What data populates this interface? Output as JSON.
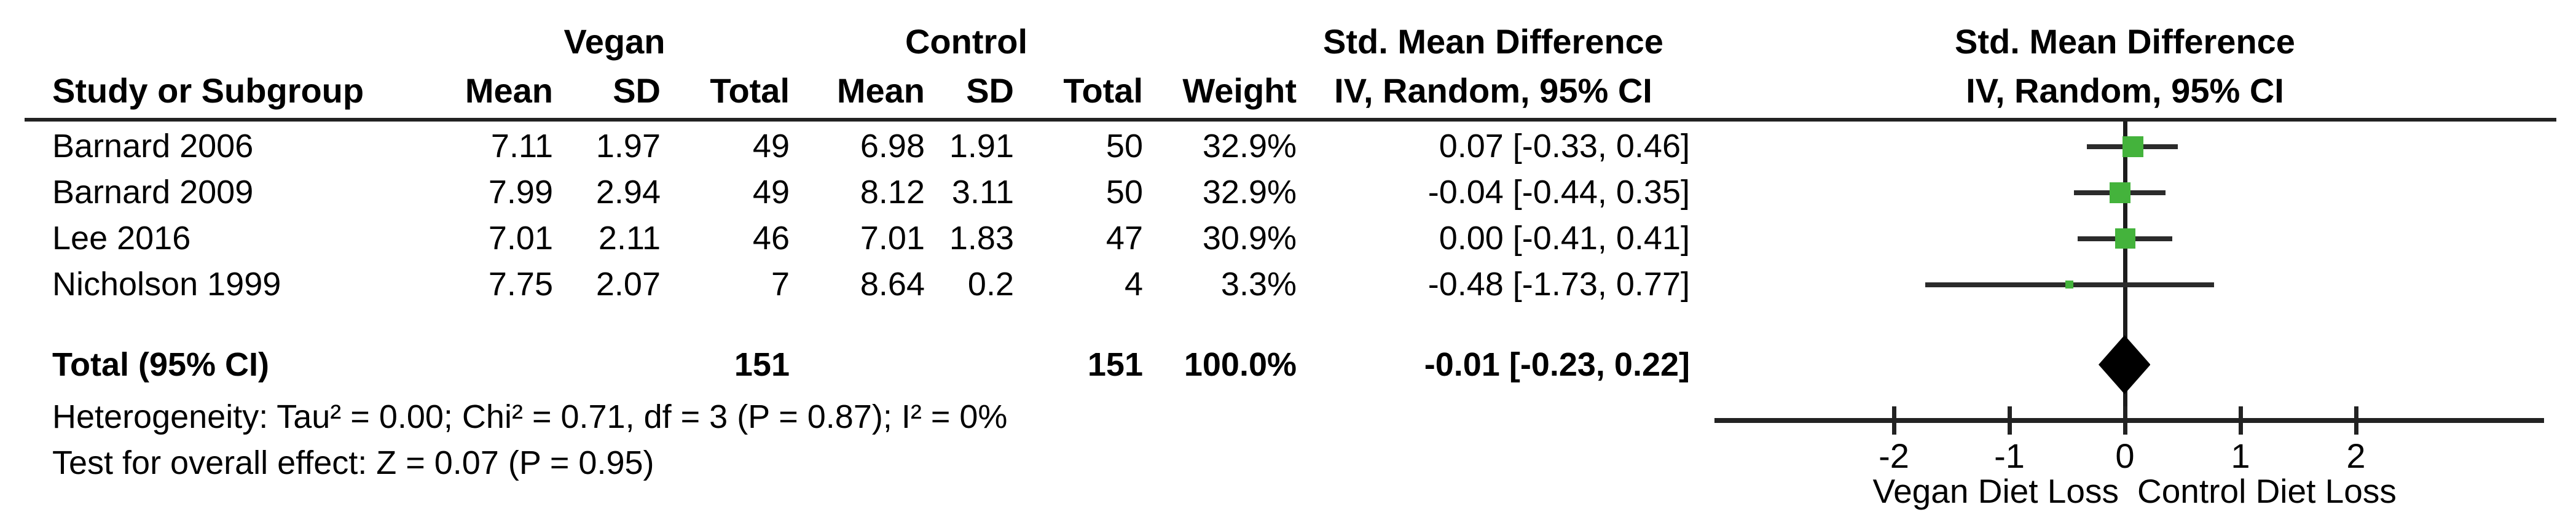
{
  "table": {
    "group_headers": {
      "vegan": "Vegan",
      "control": "Control",
      "smd_left": "Std. Mean Difference",
      "smd_right": "Std. Mean Difference"
    },
    "col_headers": {
      "study": "Study or Subgroup",
      "vegan_mean": "Mean",
      "vegan_sd": "SD",
      "vegan_total": "Total",
      "control_mean": "Mean",
      "control_sd": "SD",
      "control_total": "Total",
      "weight": "Weight",
      "ci_left": "IV, Random, 95% CI",
      "ci_right": "IV, Random, 95% CI"
    },
    "rows": [
      {
        "study": "Barnard 2006",
        "v_mean": "7.11",
        "v_sd": "1.97",
        "v_total": "49",
        "c_mean": "6.98",
        "c_sd": "1.91",
        "c_total": "50",
        "weight": "32.9%",
        "ci": "0.07 [-0.33, 0.46]"
      },
      {
        "study": "Barnard 2009",
        "v_mean": "7.99",
        "v_sd": "2.94",
        "v_total": "49",
        "c_mean": "8.12",
        "c_sd": "3.11",
        "c_total": "50",
        "weight": "32.9%",
        "ci": "-0.04 [-0.44, 0.35]"
      },
      {
        "study": "Lee 2016",
        "v_mean": "7.01",
        "v_sd": "2.11",
        "v_total": "46",
        "c_mean": "7.01",
        "c_sd": "1.83",
        "c_total": "47",
        "weight": "30.9%",
        "ci": "0.00 [-0.41, 0.41]"
      },
      {
        "study": "Nicholson 1999",
        "v_mean": "7.75",
        "v_sd": "2.07",
        "v_total": "7",
        "c_mean": "8.64",
        "c_sd": "0.2",
        "c_total": "4",
        "weight": "3.3%",
        "ci": "-0.48 [-1.73, 0.77]"
      }
    ],
    "total_row": {
      "label": "Total (95% CI)",
      "v_total": "151",
      "c_total": "151",
      "weight": "100.0%",
      "ci": "-0.01 [-0.23, 0.22]"
    },
    "heterogeneity": "Heterogeneity: Tau² = 0.00; Chi² = 0.71, df = 3 (P = 0.87); I² = 0%",
    "overall_effect": "Test for overall effect: Z = 0.07 (P = 0.95)"
  },
  "chart_data": {
    "type": "forest",
    "title": "Std. Mean Difference",
    "method_label": "IV, Random, 95% CI",
    "xlabel_left": "Vegan Diet Loss",
    "xlabel_right": "Control Diet Loss",
    "ticks": [
      -2,
      -1,
      0,
      1,
      2
    ],
    "axis_range": [
      -3.55,
      3.63
    ],
    "studies": [
      {
        "name": "Barnard 2006",
        "est": 0.07,
        "lo": -0.33,
        "hi": 0.46,
        "weight": 32.9
      },
      {
        "name": "Barnard 2009",
        "est": -0.04,
        "lo": -0.44,
        "hi": 0.35,
        "weight": 32.9
      },
      {
        "name": "Lee 2016",
        "est": 0.0,
        "lo": -0.41,
        "hi": 0.41,
        "weight": 30.9
      },
      {
        "name": "Nicholson 1999",
        "est": -0.48,
        "lo": -1.73,
        "hi": 0.77,
        "weight": 3.3
      }
    ],
    "total": {
      "est": -0.01,
      "lo": -0.23,
      "hi": 0.22
    },
    "marker_color": "#44b33c",
    "line_color": "#2b2b2b",
    "diamond_color": "#000000"
  }
}
